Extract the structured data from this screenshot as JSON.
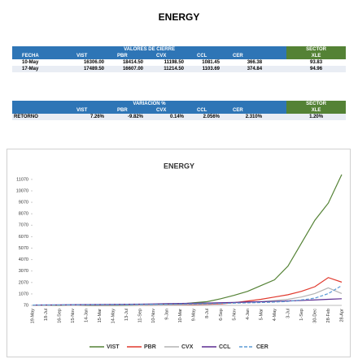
{
  "title": "ENERGY",
  "table1": {
    "group": "VALORES DE CIERRE",
    "sector": "SECTOR",
    "columns": [
      "FECHA",
      "VIST",
      "PBR",
      "CVX",
      "CCL",
      "CER",
      "XLE"
    ],
    "rows": [
      [
        "10-May",
        "16306.00",
        "18414.50",
        "11198.50",
        "1081.45",
        "366.38",
        "93.83"
      ],
      [
        "17-May",
        "17489.50",
        "16607.00",
        "11214.50",
        "1103.69",
        "374.84",
        "94.96"
      ]
    ]
  },
  "table2": {
    "group": "VARIACION %",
    "sector": "SECTOR",
    "columns": [
      "VIST",
      "PBR",
      "CVX",
      "CCL",
      "CER",
      "XLE"
    ],
    "row_label": "RETORNO",
    "row": [
      "7.26%",
      "-9.82%",
      "0.14%",
      "2.056%",
      "2.310%",
      "1.20%"
    ]
  },
  "chart_data": {
    "type": "line",
    "title": "ENERGY",
    "categories": [
      "19-May",
      "18-Jul",
      "16-Sep",
      "15-Nov",
      "14-Jan",
      "15-Mar",
      "14-May",
      "13-Jul",
      "11-Sep",
      "10-Nov",
      "9-Jan",
      "10-Mar",
      "9-May",
      "8-Jul",
      "6-Sep",
      "5-Nov",
      "4-Jan",
      "5-Mar",
      "4-May",
      "3-Jul",
      "1-Sep",
      "30-Dec",
      "28-Feb",
      "28-Apr"
    ],
    "ylim": [
      70,
      11700
    ],
    "yticks": [
      70,
      1070,
      2070,
      3070,
      4070,
      5070,
      6070,
      7070,
      8070,
      9070,
      10070,
      11070
    ],
    "series": [
      {
        "name": "VIST",
        "color": "#548235",
        "dash": false,
        "values": [
          100,
          80,
          70,
          90,
          60,
          40,
          50,
          60,
          80,
          100,
          150,
          200,
          300,
          400,
          650,
          950,
          1300,
          1800,
          2300,
          3500,
          5500,
          7500,
          9000,
          11500
        ]
      },
      {
        "name": "PBR",
        "color": "#e0392d",
        "dash": false,
        "values": [
          100,
          95,
          100,
          90,
          80,
          60,
          70,
          80,
          90,
          100,
          110,
          130,
          150,
          170,
          200,
          300,
          450,
          600,
          800,
          1000,
          1300,
          1700,
          2500,
          2100
        ]
      },
      {
        "name": "CVX",
        "color": "#b4b4b4",
        "dash": false,
        "values": [
          100,
          95,
          95,
          90,
          85,
          60,
          70,
          80,
          90,
          100,
          120,
          150,
          180,
          200,
          250,
          300,
          350,
          400,
          500,
          600,
          800,
          1100,
          1600,
          1100
        ]
      },
      {
        "name": "CCL",
        "color": "#5b2c91",
        "dash": false,
        "values": [
          100,
          110,
          120,
          130,
          140,
          150,
          160,
          170,
          180,
          200,
          220,
          240,
          260,
          280,
          300,
          330,
          360,
          390,
          420,
          460,
          500,
          550,
          600,
          650
        ]
      },
      {
        "name": "CER",
        "color": "#5b9bd5",
        "dash": true,
        "values": [
          100,
          105,
          110,
          115,
          120,
          125,
          130,
          140,
          150,
          160,
          170,
          185,
          200,
          220,
          240,
          265,
          290,
          320,
          360,
          420,
          550,
          700,
          1100,
          1800
        ]
      }
    ]
  }
}
